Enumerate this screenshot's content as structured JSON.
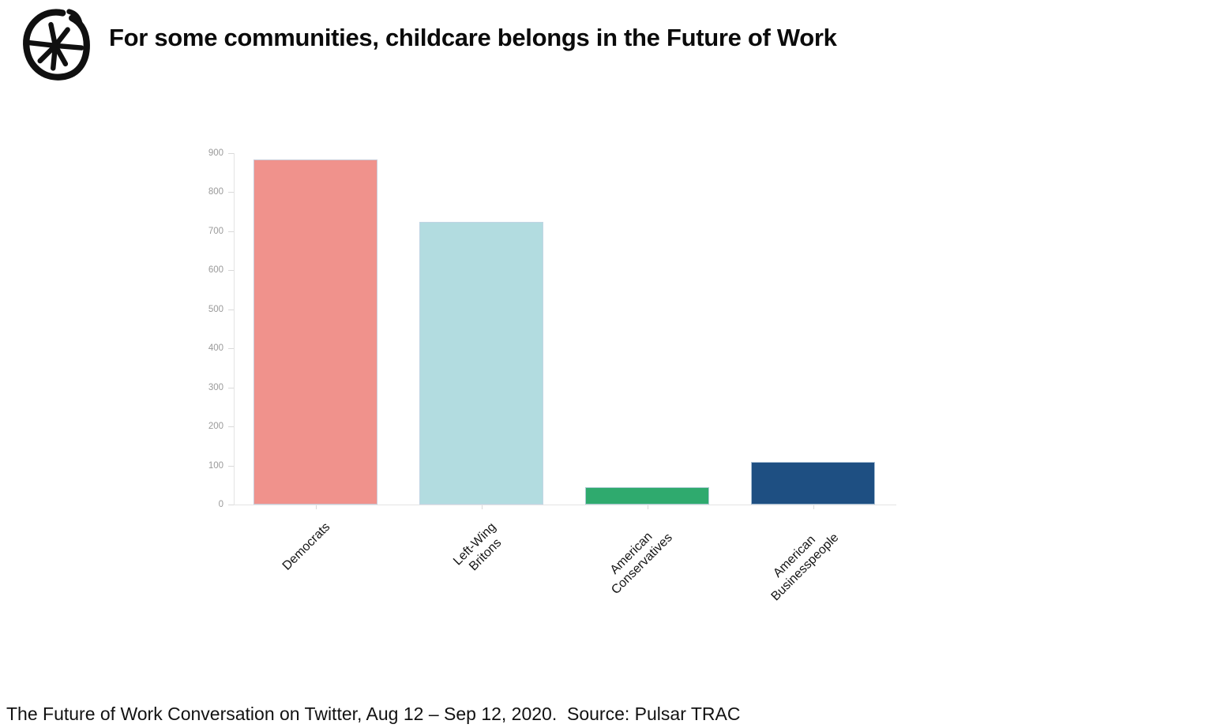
{
  "header": {
    "logo_name": "pulsar-logo"
  },
  "chart_data": {
    "type": "bar",
    "title": "For some communities, childcare belongs in the Future of Work",
    "categories": [
      "Democrats",
      "Left-Wing\nBritons",
      "American\nConservatives",
      "American\nBusinesspeople"
    ],
    "values": [
      883,
      725,
      45,
      110
    ],
    "colors": [
      "#F0928C",
      "#B2DCE0",
      "#2FAA6E",
      "#1E4F82"
    ],
    "xlabel": "",
    "ylabel": "",
    "ylim": [
      0,
      900
    ],
    "ytick_step": 100,
    "grid": false,
    "legend_position": "none",
    "bar_orientation": "vertical",
    "source_note": "The Future of Work Conversation on Twitter, Aug 12 – Sep 12, 2020.  Source: Pulsar TRAC"
  },
  "ui_colors": {
    "axis_line": "#e4e4e4",
    "tick_label": "#9a9a9a",
    "category_label": "#141414",
    "title_text": "#0b0b0b"
  }
}
